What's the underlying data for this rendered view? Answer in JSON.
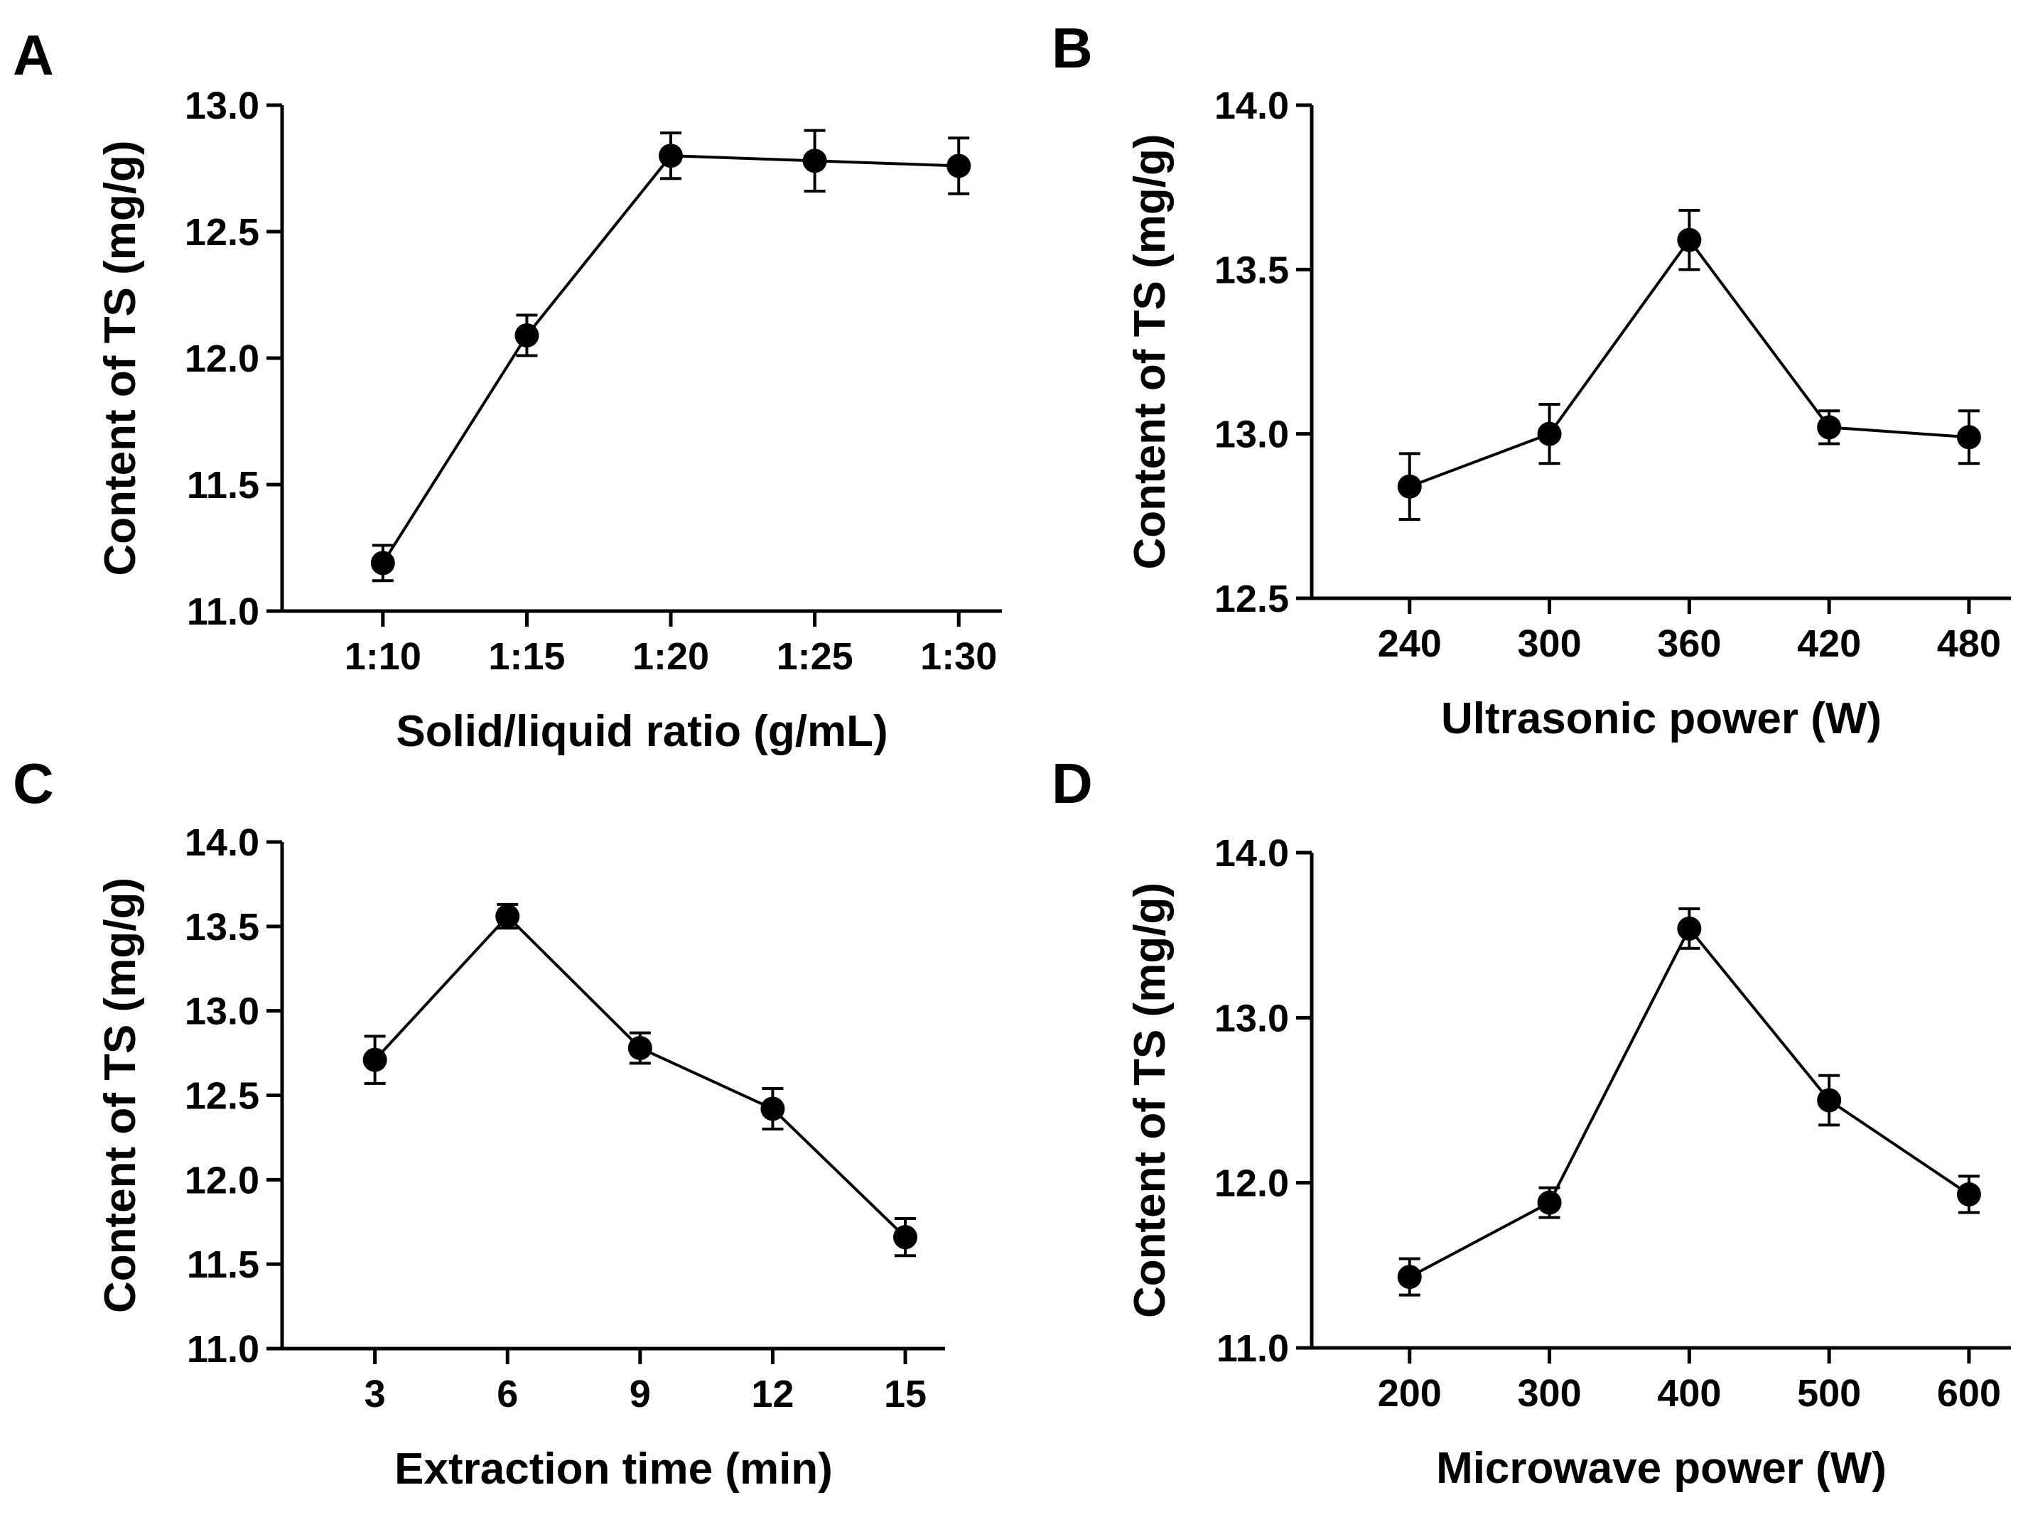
{
  "colors": {
    "ink": "#000000",
    "background": "#ffffff"
  },
  "chart_data": [
    {
      "panel": "A",
      "type": "line",
      "title": "",
      "xlabel": "Solid/liquid ratio (g/mL)",
      "ylabel": "Content of TS (mg/g)",
      "categories": [
        "1:10",
        "1:15",
        "1:20",
        "1:25",
        "1:30"
      ],
      "values": [
        11.19,
        12.09,
        12.8,
        12.78,
        12.76
      ],
      "errors": [
        0.07,
        0.08,
        0.09,
        0.12,
        0.11
      ],
      "ylim": [
        11.0,
        13.0
      ],
      "yticks": [
        "11.0",
        "11.5",
        "12.0",
        "12.5",
        "13.0"
      ],
      "grid": false
    },
    {
      "panel": "B",
      "type": "line",
      "title": "",
      "xlabel": "Ultrasonic power (W)",
      "ylabel": "Content of TS (mg/g)",
      "categories": [
        "240",
        "300",
        "360",
        "420",
        "480"
      ],
      "values": [
        12.84,
        13.0,
        13.59,
        13.02,
        12.99
      ],
      "errors": [
        0.1,
        0.09,
        0.09,
        0.05,
        0.08
      ],
      "ylim": [
        12.5,
        14.0
      ],
      "yticks": [
        "12.5",
        "13.0",
        "13.5",
        "14.0"
      ],
      "grid": false
    },
    {
      "panel": "C",
      "type": "line",
      "title": "",
      "xlabel": "Extraction time (min)",
      "ylabel": "Content of TS (mg/g)",
      "categories": [
        "3",
        "6",
        "9",
        "12",
        "15"
      ],
      "values": [
        12.71,
        13.56,
        12.78,
        12.42,
        11.66
      ],
      "errors": [
        0.14,
        0.07,
        0.09,
        0.12,
        0.11
      ],
      "ylim": [
        11.0,
        14.0
      ],
      "yticks": [
        "11.0",
        "11.5",
        "12.0",
        "12.5",
        "13.0",
        "13.5",
        "14.0"
      ],
      "grid": false
    },
    {
      "panel": "D",
      "type": "line",
      "title": "",
      "xlabel": "Microwave power (W)",
      "ylabel": "Content of TS (mg/g)",
      "categories": [
        "200",
        "300",
        "400",
        "500",
        "600"
      ],
      "values": [
        11.43,
        11.88,
        13.54,
        12.5,
        11.93
      ],
      "errors": [
        0.11,
        0.09,
        0.12,
        0.15,
        0.11
      ],
      "ylim": [
        11.0,
        14.0
      ],
      "yticks": [
        "11.0",
        "12.0",
        "13.0",
        "14.0"
      ],
      "grid": false
    }
  ]
}
